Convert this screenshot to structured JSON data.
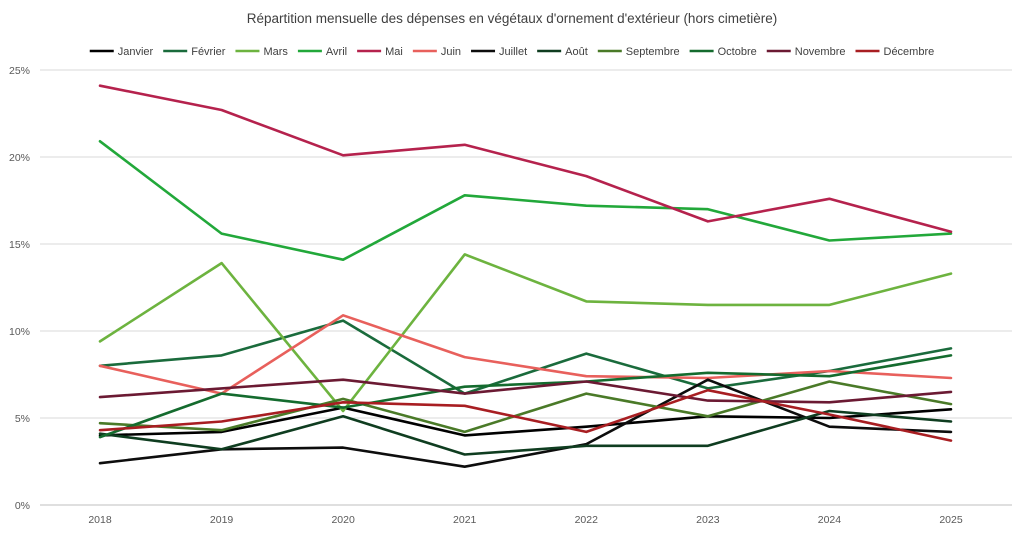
{
  "chart_data": {
    "type": "line",
    "title": "Répartition mensuelle des dépenses en végétaux d'ornement d'extérieur (hors cimetière)",
    "xlabel": "",
    "ylabel": "",
    "x": [
      "2018",
      "2019",
      "2020",
      "2021",
      "2022",
      "2023",
      "2024",
      "2025"
    ],
    "ylim": [
      0,
      25
    ],
    "yticks": [
      "0%",
      "5%",
      "10%",
      "15%",
      "20%",
      "25%"
    ],
    "grid": "horizontal",
    "legend_position": "top",
    "series": [
      {
        "name": "Janvier",
        "color": "#000000",
        "values": [
          4.0,
          4.2,
          5.6,
          4.0,
          4.5,
          5.1,
          5.0,
          5.5
        ]
      },
      {
        "name": "Février",
        "color": "#1a6b3c",
        "values": [
          8.0,
          8.6,
          10.6,
          6.4,
          8.7,
          6.7,
          7.7,
          9.0
        ]
      },
      {
        "name": "Mars",
        "color": "#6db33f",
        "values": [
          9.4,
          13.9,
          5.4,
          14.4,
          11.7,
          11.5,
          11.5,
          13.3
        ]
      },
      {
        "name": "Avril",
        "color": "#22a83a",
        "values": [
          20.9,
          15.6,
          14.1,
          17.8,
          17.2,
          17.0,
          15.2,
          15.6
        ]
      },
      {
        "name": "Mai",
        "color": "#b5224d",
        "values": [
          24.1,
          22.7,
          20.1,
          20.7,
          18.9,
          16.3,
          17.6,
          15.7
        ]
      },
      {
        "name": "Juin",
        "color": "#e8605c",
        "values": [
          8.0,
          6.4,
          10.9,
          8.5,
          7.4,
          7.3,
          7.7,
          7.3
        ]
      },
      {
        "name": "Juillet",
        "color": "#0d0d0d",
        "values": [
          2.4,
          3.2,
          3.3,
          2.2,
          3.5,
          7.2,
          4.5,
          4.2
        ]
      },
      {
        "name": "Août",
        "color": "#0f3d20",
        "values": [
          4.1,
          3.2,
          5.1,
          2.9,
          3.4,
          3.4,
          5.4,
          4.8
        ]
      },
      {
        "name": "Septembre",
        "color": "#4a7a28",
        "values": [
          4.7,
          4.3,
          6.1,
          4.2,
          6.4,
          5.1,
          7.1,
          5.8
        ]
      },
      {
        "name": "Octobre",
        "color": "#146b2e",
        "values": [
          3.9,
          6.4,
          5.6,
          6.8,
          7.1,
          7.6,
          7.4,
          8.6
        ]
      },
      {
        "name": "Novembre",
        "color": "#6b1a33",
        "values": [
          6.2,
          6.7,
          7.2,
          6.4,
          7.1,
          6.0,
          5.9,
          6.5
        ]
      },
      {
        "name": "Décembre",
        "color": "#a81e22",
        "values": [
          4.3,
          4.8,
          5.9,
          5.7,
          4.2,
          6.6,
          5.2,
          3.7
        ]
      }
    ]
  }
}
